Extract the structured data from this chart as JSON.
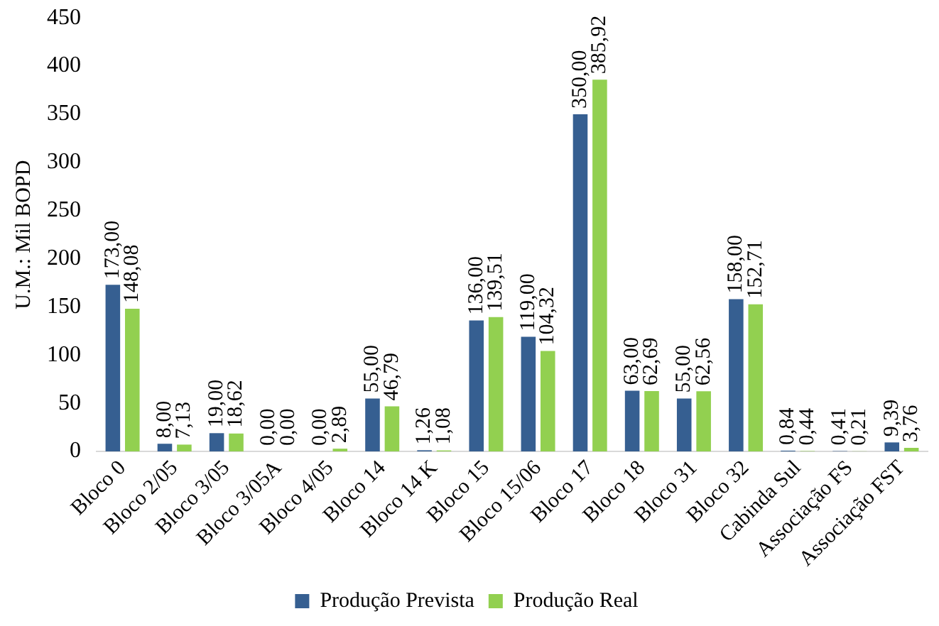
{
  "chart_data": {
    "type": "bar",
    "ylabel": "U.M.: Mil BOPD",
    "categories": [
      "Bloco 0",
      "Bloco 2/05",
      "Bloco 3/05",
      "Bloco 3/05A",
      "Bloco 4/05",
      "Bloco 14",
      "Bloco 14 K",
      "Bloco 15",
      "Bloco 15/06",
      "Bloco 17",
      "Bloco 18",
      "Bloco 31",
      "Bloco 32",
      "Cabinda Sul",
      "Associação FS",
      "Associação FST"
    ],
    "series": [
      {
        "name": "Produção Prevista",
        "color": "#365f91",
        "values": [
          173,
          8,
          19,
          0,
          0,
          55,
          1.26,
          136,
          119,
          350,
          63,
          55,
          158,
          0.84,
          0.41,
          9.39
        ],
        "value_labels": [
          "173,00",
          "8,00",
          "19,00",
          "0,00",
          "0,00",
          "55,00",
          "1,26",
          "136,00",
          "119,00",
          "350,00",
          "63,00",
          "55,00",
          "158,00",
          "0,84",
          "0,41",
          "9,39"
        ]
      },
      {
        "name": "Produção Real",
        "color": "#92d050",
        "values": [
          148.08,
          7.13,
          18.62,
          0,
          2.89,
          46.79,
          1.08,
          139.51,
          104.32,
          385.92,
          62.69,
          62.56,
          152.71,
          0.44,
          0.21,
          3.76
        ],
        "value_labels": [
          "148,08",
          "7,13",
          "18,62",
          "0,00",
          "2,89",
          "46,79",
          "1,08",
          "139,51",
          "104,32",
          "385,92",
          "62,69",
          "62,56",
          "152,71",
          "0,44",
          "0,21",
          "3,76"
        ]
      }
    ],
    "ylim": [
      0,
      450
    ],
    "yticks": [
      0,
      50,
      100,
      150,
      200,
      250,
      300,
      350,
      400,
      450
    ],
    "grid": false,
    "legend": "bottom"
  }
}
